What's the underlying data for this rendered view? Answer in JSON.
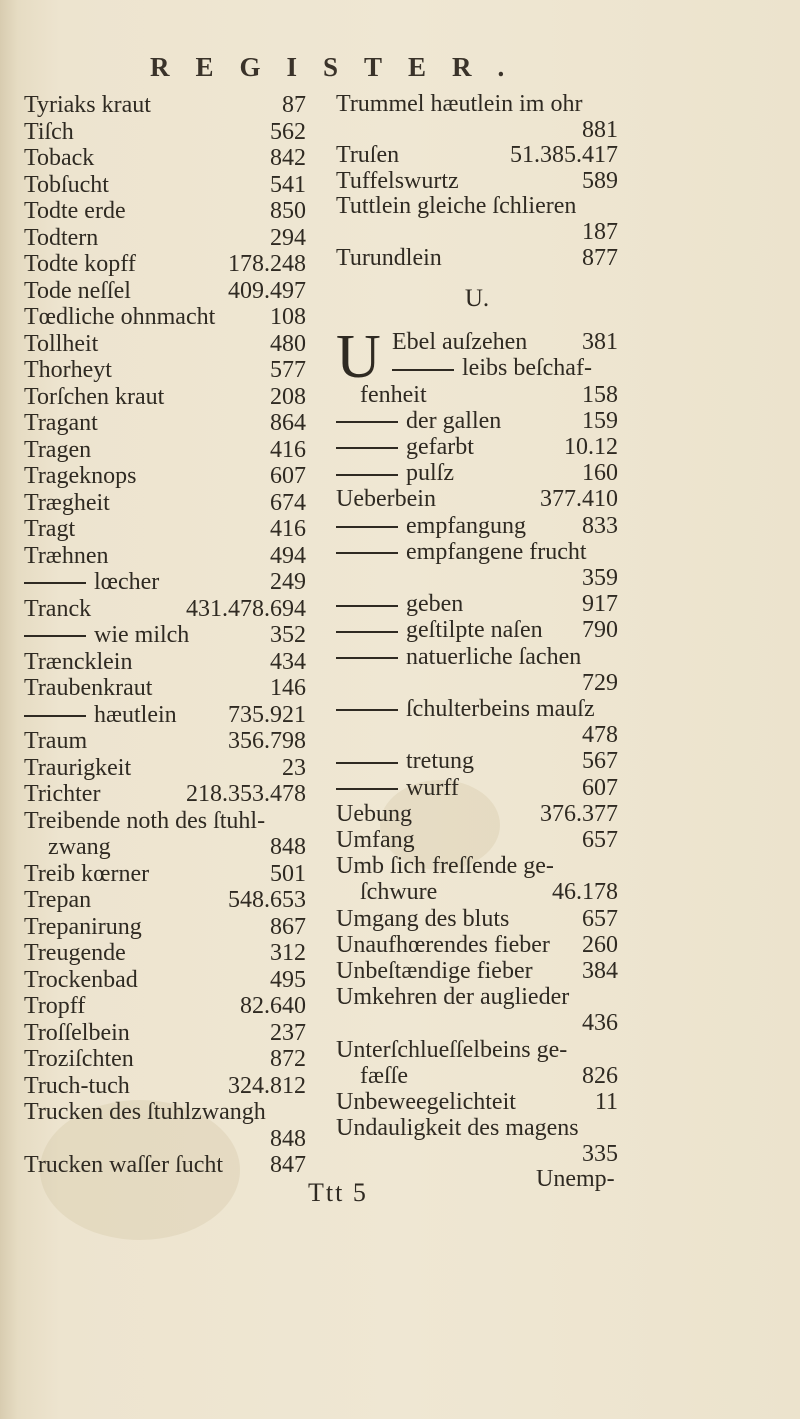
{
  "header": "REGISTER.",
  "left_column": [
    {
      "text": "Tyriaks kraut",
      "num": "87"
    },
    {
      "text": "Tiſch",
      "num": "562"
    },
    {
      "text": "Toback",
      "num": "842"
    },
    {
      "text": "Tobſucht",
      "num": "541"
    },
    {
      "text": "Todte erde",
      "num": "850"
    },
    {
      "text": "Todtern",
      "num": "294"
    },
    {
      "text": "Todte kopff",
      "num": "178.248"
    },
    {
      "text": "Tode neſſel",
      "num": "409.497"
    },
    {
      "text": "Tœdliche ohnmacht",
      "num": "108"
    },
    {
      "text": "Tollheit",
      "num": "480"
    },
    {
      "text": "Thorheyt",
      "num": "577"
    },
    {
      "text": "Torſchen kraut",
      "num": "208"
    },
    {
      "text": "Tragant",
      "num": "864"
    },
    {
      "text": "Tragen",
      "num": "416"
    },
    {
      "text": "Trageknops",
      "num": "607"
    },
    {
      "text": "Trægheit",
      "num": "674"
    },
    {
      "text": "Tragt",
      "num": "416"
    },
    {
      "text": "Træhnen",
      "num": "494"
    },
    {
      "text": "lœcher",
      "num": "249",
      "dash": true
    },
    {
      "text": "Tranck",
      "num": "431.478.694"
    },
    {
      "text": "wie milch",
      "num": "352",
      "dash": true
    },
    {
      "text": "Træncklein",
      "num": "434"
    },
    {
      "text": "Traubenkraut",
      "num": "146"
    },
    {
      "text": "hæutlein",
      "num": "735.921",
      "dash": true
    },
    {
      "text": "Traum",
      "num": "356.798"
    },
    {
      "text": "Traurigkeit",
      "num": "23"
    },
    {
      "text": "Trichter",
      "num": "218.353.478"
    },
    {
      "text": "Treibende noth des ſtuhl-",
      "num": ""
    },
    {
      "text": "zwang",
      "num": "848",
      "sub": true
    },
    {
      "text": "Treib kœrner",
      "num": "501"
    },
    {
      "text": "Trepan",
      "num": "548.653"
    },
    {
      "text": "Trepanirung",
      "num": "867"
    },
    {
      "text": "Treugende",
      "num": "312"
    },
    {
      "text": "Trockenbad",
      "num": "495"
    },
    {
      "text": "Tropff",
      "num": "82.640"
    },
    {
      "text": "Troſſelbein",
      "num": "237"
    },
    {
      "text": "Troziſchten",
      "num": "872"
    },
    {
      "text": "Truch-tuch",
      "num": "324.812"
    },
    {
      "text": "Trucken des ſtuhlzwangh",
      "num": ""
    },
    {
      "text": "",
      "num": "848"
    },
    {
      "text": "Trucken waſſer ſucht",
      "num": "847"
    }
  ],
  "right_column_top": [
    {
      "text": "Trummel hæutlein im ohr",
      "num": ""
    },
    {
      "text": "",
      "num": "881"
    },
    {
      "text": "Truſen",
      "num": "51.385.417"
    },
    {
      "text": "Tuffelswurtz",
      "num": "589"
    },
    {
      "text": "Tuttlein gleiche ſchlieren",
      "num": ""
    },
    {
      "text": "",
      "num": "187"
    },
    {
      "text": "Turundlein",
      "num": "877"
    }
  ],
  "section_heading": "U.",
  "drop_cap": "U",
  "right_column_u": [
    {
      "text": "Ebel auſzehen",
      "num": "381",
      "dc": true
    },
    {
      "text": "leibs beſchaf-",
      "num": "",
      "dash": true,
      "dc": true
    },
    {
      "text": "fenheit",
      "num": "158",
      "sub": true
    },
    {
      "text": "der gallen",
      "num": "159",
      "dash": true
    },
    {
      "text": "gefarbt",
      "num": "10.12",
      "dash": true
    },
    {
      "text": "pulſz",
      "num": "160",
      "dash": true
    },
    {
      "text": "Ueberbein",
      "num": "377.410"
    },
    {
      "text": "empfangung",
      "num": "833",
      "dash": true
    },
    {
      "text": "empfangene frucht",
      "num": "",
      "dash": true
    },
    {
      "text": "",
      "num": "359"
    },
    {
      "text": "geben",
      "num": "917",
      "dash": true
    },
    {
      "text": "geſtilpte naſen",
      "num": "790",
      "dash": true
    },
    {
      "text": "natuerliche ſachen",
      "num": "",
      "dash": true
    },
    {
      "text": "",
      "num": "729"
    },
    {
      "text": "ſchulterbeins mauſz",
      "num": "",
      "dash": true
    },
    {
      "text": "",
      "num": "478"
    },
    {
      "text": "tretung",
      "num": "567",
      "dash": true
    },
    {
      "text": "wurff",
      "num": "607",
      "dash": true
    },
    {
      "text": "Uebung",
      "num": "376.377"
    },
    {
      "text": "Umfang",
      "num": "657"
    },
    {
      "text": "Umb ſich freſſende ge-",
      "num": ""
    },
    {
      "text": "ſchwure",
      "num": "46.178",
      "sub": true
    },
    {
      "text": "Umgang des bluts",
      "num": "657"
    },
    {
      "text": "Unaufhœrendes fieber",
      "num": "260"
    },
    {
      "text": "Unbeſtændige fieber",
      "num": "384"
    },
    {
      "text": "Umkehren der auglieder",
      "num": ""
    },
    {
      "text": "",
      "num": "436"
    },
    {
      "text": "Unterſchlueſſelbeins ge-",
      "num": ""
    },
    {
      "text": "fæſſe",
      "num": "826",
      "sub": true
    },
    {
      "text": "Unbeweegelichteit",
      "num": "11"
    },
    {
      "text": "Undauligkeit des magens",
      "num": ""
    },
    {
      "text": "",
      "num": "335"
    }
  ],
  "signature": "Ttt 5",
  "catchword": "Unemp-"
}
